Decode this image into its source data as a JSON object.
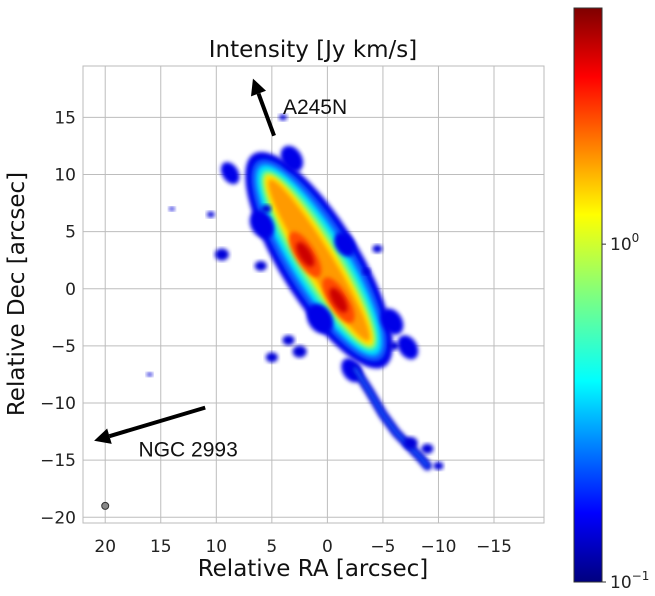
{
  "chart_data": {
    "type": "heatmap",
    "title": "Intensity [Jy km/s]",
    "xlabel": "Relative RA [arcsec]",
    "ylabel": "Relative Dec [arcsec]",
    "xlim": [
      22,
      -19.5
    ],
    "ylim": [
      -20.5,
      19.5
    ],
    "xticks": [
      20,
      15,
      10,
      5,
      0,
      -5,
      -10,
      -15
    ],
    "xtick_labels": [
      "20",
      "15",
      "10",
      "5",
      "0",
      "−5",
      "−10",
      "−15"
    ],
    "yticks": [
      15,
      10,
      5,
      0,
      -5,
      -10,
      -15,
      -20
    ],
    "ytick_labels": [
      "15",
      "10",
      "5",
      "0",
      "−5",
      "−10",
      "−15",
      "−20"
    ],
    "grid": true,
    "colormap": "jet",
    "colorbar": {
      "scale": "log",
      "range": [
        0.1,
        5
      ],
      "ticks": [
        {
          "value": 1.0,
          "base": "10",
          "exp": "0"
        },
        {
          "value": 0.1,
          "base": "10",
          "exp": "−1"
        }
      ]
    },
    "emission": {
      "major_axis_start": [
        5.5,
        10.0
      ],
      "major_axis_end": [
        -4.0,
        -5.0
      ],
      "peaks": [
        [
          2.0,
          3.0
        ],
        [
          -1.0,
          -1.0
        ]
      ],
      "tail_end": [
        -9.0,
        -15.5
      ]
    },
    "annotations": [
      {
        "text": "A245N",
        "x": 4.0,
        "y": 16.0,
        "arrow_from": [
          4.8,
          13.4
        ],
        "arrow_to": [
          6.7,
          18.4
        ]
      },
      {
        "text": "NGC 2993",
        "x": 17.0,
        "y": -14.0,
        "arrow_from": [
          11.0,
          -10.4
        ],
        "arrow_to": [
          21.0,
          -13.3
        ]
      }
    ],
    "beam": {
      "x": 20.0,
      "y": -19.0
    }
  }
}
